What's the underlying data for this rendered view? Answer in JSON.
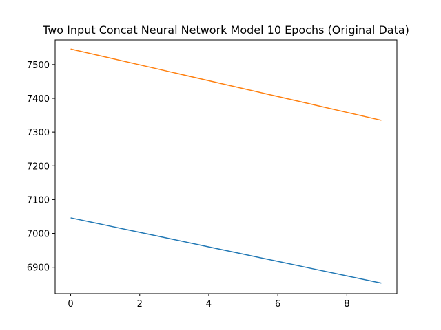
{
  "chart_data": {
    "type": "line",
    "title": "Two Input Concat Neural Network Model 10 Epochs (Original Data)",
    "xlabel": "",
    "ylabel": "",
    "x": [
      0,
      1,
      2,
      3,
      4,
      5,
      6,
      7,
      8,
      9
    ],
    "xlim": [
      -0.45,
      9.45
    ],
    "ylim": [
      6822,
      7573
    ],
    "xticks": [
      0,
      2,
      4,
      6,
      8
    ],
    "yticks": [
      6900,
      7000,
      7100,
      7200,
      7300,
      7400,
      7500
    ],
    "grid": false,
    "legend": "none",
    "series": [
      {
        "color": "#1f77b4",
        "values": [
          7046,
          7024.6,
          7003.1,
          6981.7,
          6960.2,
          6938.8,
          6917.3,
          6895.9,
          6874.4,
          6853
        ]
      },
      {
        "color": "#ff7f0e",
        "values": [
          7546,
          7522.6,
          7499.1,
          7475.7,
          7452.2,
          7428.8,
          7405.3,
          7381.9,
          7358.4,
          7335
        ]
      }
    ]
  }
}
